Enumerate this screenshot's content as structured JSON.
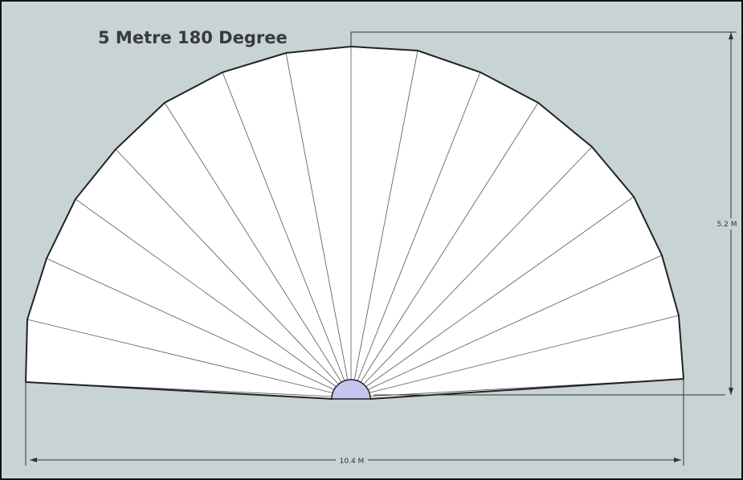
{
  "title": "5 Metre 180 Degree",
  "dimensions": {
    "height": "5.2 M",
    "width": "10.4 M"
  }
}
